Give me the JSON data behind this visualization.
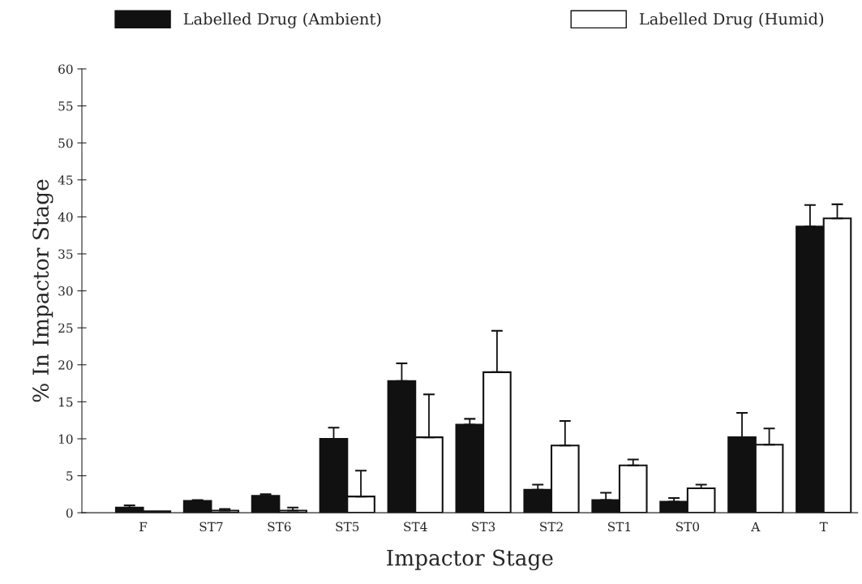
{
  "chart_data": {
    "type": "bar",
    "xlabel": "Impactor Stage",
    "ylabel": "% In Impactor Stage",
    "categories": [
      "F",
      "ST7",
      "ST6",
      "ST5",
      "ST4",
      "ST3",
      "ST2",
      "ST1",
      "ST0",
      "A",
      "T"
    ],
    "series": [
      {
        "name": "Labelled Drug (Ambient)",
        "color": "#111111",
        "values": [
          0.7,
          1.6,
          2.3,
          10.0,
          17.8,
          11.9,
          3.1,
          1.7,
          1.5,
          10.2,
          38.7
        ],
        "errors": [
          0.3,
          0.1,
          0.2,
          1.5,
          2.4,
          0.8,
          0.7,
          1.0,
          0.5,
          3.3,
          2.9
        ]
      },
      {
        "name": "Labelled Drug (Humid)",
        "color": "#ffffff",
        "values": [
          0.2,
          0.3,
          0.3,
          2.2,
          10.2,
          19.0,
          9.1,
          6.4,
          3.3,
          9.2,
          39.8
        ],
        "errors": [
          null,
          0.2,
          0.4,
          3.5,
          5.8,
          5.6,
          3.3,
          0.8,
          0.5,
          2.2,
          1.9
        ]
      }
    ],
    "ylim": [
      0,
      60
    ],
    "yticks": [
      0,
      5,
      10,
      15,
      20,
      25,
      30,
      35,
      40,
      45,
      50,
      55,
      60
    ],
    "grid": false,
    "legend": "top"
  }
}
